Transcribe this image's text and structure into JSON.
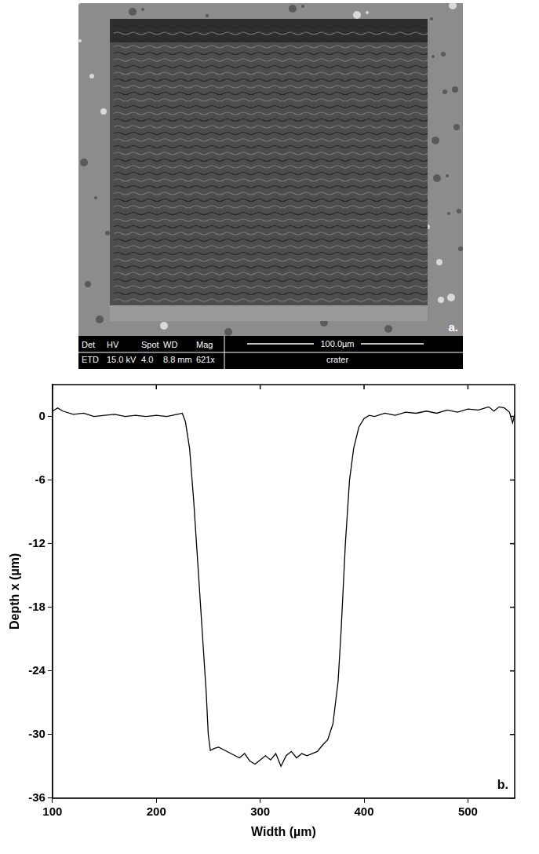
{
  "sem_image": {
    "panel_label": "a.",
    "info_bar": {
      "headers": [
        "Det",
        "HV",
        "Spot",
        "WD",
        "Mag"
      ],
      "values": [
        "ETD",
        "15.0 kV",
        "4.0",
        "8.8 mm",
        "621x"
      ],
      "scale_bar": "100.0µm",
      "label": "crater"
    }
  },
  "chart_data": {
    "type": "line",
    "x_label": "Width (µm)",
    "y_label": "Depth x (µm)",
    "annotations": [
      "b."
    ],
    "color": "#000000",
    "grid": false,
    "xlim": [
      100,
      545
    ],
    "xticks": [
      100,
      200,
      300,
      400,
      500
    ],
    "ylim": [
      -36,
      3
    ],
    "yticks": [
      -36,
      -30,
      -24,
      -18,
      -12,
      -6,
      0
    ],
    "x": [
      100,
      105,
      110,
      120,
      130,
      140,
      150,
      160,
      170,
      180,
      190,
      200,
      210,
      220,
      225,
      228,
      232,
      236,
      240,
      244,
      248,
      250,
      252,
      256,
      260,
      270,
      280,
      285,
      290,
      295,
      300,
      305,
      310,
      315,
      320,
      325,
      330,
      335,
      340,
      345,
      350,
      355,
      360,
      365,
      370,
      375,
      378,
      382,
      386,
      390,
      395,
      400,
      405,
      410,
      420,
      430,
      440,
      450,
      460,
      470,
      480,
      490,
      500,
      510,
      520,
      525,
      530,
      535,
      540,
      543,
      545
    ],
    "values": [
      0.5,
      0.8,
      0.5,
      0.2,
      0.3,
      0,
      0.1,
      0.2,
      0,
      0.1,
      0,
      0.1,
      0,
      0.2,
      0.3,
      -0.5,
      -3,
      -8,
      -14,
      -20,
      -26,
      -30,
      -31.5,
      -31.3,
      -31.2,
      -31.7,
      -32.2,
      -31.8,
      -32.5,
      -32.8,
      -32.4,
      -32,
      -32.4,
      -31.8,
      -33,
      -32,
      -31.6,
      -32.2,
      -31.8,
      -32,
      -31.8,
      -31.6,
      -31,
      -30.5,
      -29,
      -25,
      -20,
      -12,
      -6,
      -3,
      -1,
      -0.2,
      0.1,
      0,
      0.3,
      0.1,
      0.4,
      0.3,
      0.5,
      0.3,
      0.6,
      0.4,
      0.7,
      0.6,
      0.9,
      0.5,
      0.9,
      0.8,
      0.4,
      -0.6,
      0.2
    ]
  }
}
